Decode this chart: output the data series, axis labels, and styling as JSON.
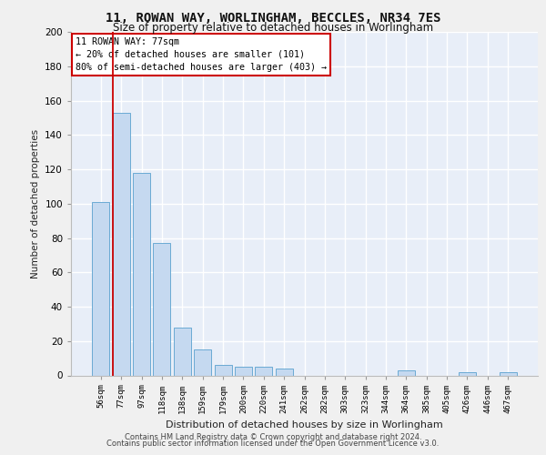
{
  "title1": "11, ROWAN WAY, WORLINGHAM, BECCLES, NR34 7ES",
  "title2": "Size of property relative to detached houses in Worlingham",
  "xlabel": "Distribution of detached houses by size in Worlingham",
  "ylabel": "Number of detached properties",
  "bar_labels": [
    "56sqm",
    "77sqm",
    "97sqm",
    "118sqm",
    "138sqm",
    "159sqm",
    "179sqm",
    "200sqm",
    "220sqm",
    "241sqm",
    "262sqm",
    "282sqm",
    "303sqm",
    "323sqm",
    "344sqm",
    "364sqm",
    "385sqm",
    "405sqm",
    "426sqm",
    "446sqm",
    "467sqm"
  ],
  "bar_values": [
    101,
    153,
    118,
    77,
    28,
    15,
    6,
    5,
    5,
    4,
    0,
    0,
    0,
    0,
    0,
    3,
    0,
    0,
    2,
    0,
    2
  ],
  "bar_color": "#c5d9f0",
  "bar_edge_color": "#6aaad4",
  "property_bar_index": 1,
  "vline_color": "#cc0000",
  "annotation_line1": "11 ROWAN WAY: 77sqm",
  "annotation_line2": "← 20% of detached houses are smaller (101)",
  "annotation_line3": "80% of semi-detached houses are larger (403) →",
  "annotation_box_facecolor": "#ffffff",
  "annotation_box_edgecolor": "#cc0000",
  "bg_color": "#e8eef8",
  "grid_color": "#ffffff",
  "footer1": "Contains HM Land Registry data © Crown copyright and database right 2024.",
  "footer2": "Contains public sector information licensed under the Open Government Licence v3.0.",
  "ylim": [
    0,
    200
  ],
  "yticks": [
    0,
    20,
    40,
    60,
    80,
    100,
    120,
    140,
    160,
    180,
    200
  ],
  "fig_bg": "#f0f0f0"
}
